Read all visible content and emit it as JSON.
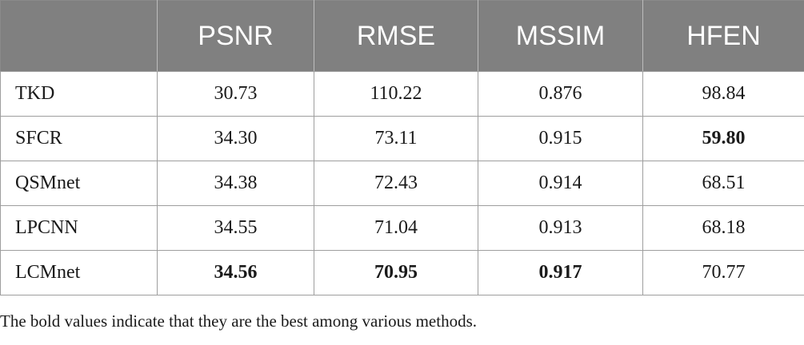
{
  "table": {
    "headers": [
      "",
      "PSNR",
      "RMSE",
      "MSSIM",
      "HFEN"
    ],
    "rows": [
      {
        "method": "TKD",
        "values": [
          "30.73",
          "110.22",
          "0.876",
          "98.84"
        ],
        "best": [
          false,
          false,
          false,
          false
        ]
      },
      {
        "method": "SFCR",
        "values": [
          "34.30",
          "73.11",
          "0.915",
          "59.80"
        ],
        "best": [
          false,
          false,
          false,
          true
        ]
      },
      {
        "method": "QSMnet",
        "values": [
          "34.38",
          "72.43",
          "0.914",
          "68.51"
        ],
        "best": [
          false,
          false,
          false,
          false
        ]
      },
      {
        "method": "LPCNN",
        "values": [
          "34.55",
          "71.04",
          "0.913",
          "68.18"
        ],
        "best": [
          false,
          false,
          false,
          false
        ]
      },
      {
        "method": "LCMnet",
        "values": [
          "34.56",
          "70.95",
          "0.917",
          "70.77"
        ],
        "best": [
          true,
          true,
          true,
          false
        ]
      }
    ]
  },
  "footnote": "The bold values indicate that they are the best among various methods.",
  "colors": {
    "header_bg": "#808080",
    "header_text": "#ffffff",
    "grid": "#9e9e9e"
  }
}
